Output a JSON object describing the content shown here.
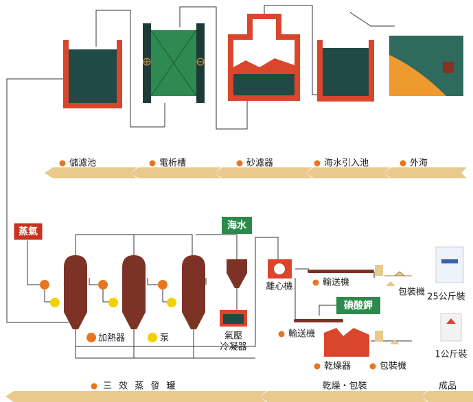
{
  "top_stages": [
    "儲濾池",
    "電析槽",
    "砂濾器",
    "海水引入池",
    "外海"
  ],
  "tags": {
    "steam": "蒸氣",
    "seawater": "海水",
    "iodate": "碘酸鉀"
  },
  "equipment": {
    "centrifuge": "離心機",
    "conveyor_1": "輸送機",
    "packer_1": "包裝機",
    "pack_25kg": "25公斤裝",
    "conveyor_2": "輸送機",
    "dryer": "乾燥器",
    "packer_2": "包裝機",
    "pack_1kg": "1公斤裝",
    "heater": "加熱器",
    "pump": "泵",
    "condenser": [
      "氣壓",
      "冷凝器"
    ]
  },
  "bottom_stages": [
    "三 效 蒸 發 罐",
    "乾燥・包裝",
    "成品"
  ]
}
